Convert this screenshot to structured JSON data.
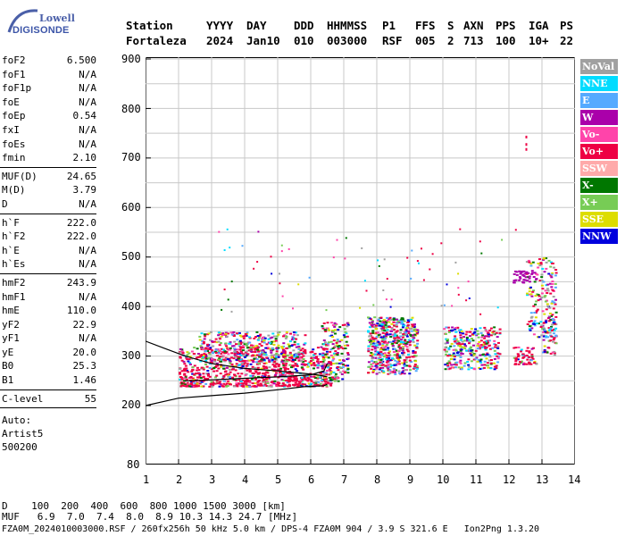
{
  "logo": {
    "line1": "Lowell",
    "line2": "DIGISONDE"
  },
  "header": {
    "row1": [
      "Station",
      "YYYY",
      "DAY",
      "DDD",
      "HHMMSS",
      "P1",
      "FFS",
      "S",
      "AXN",
      "PPS",
      "IGA",
      "PS"
    ],
    "row2": [
      "Fortaleza",
      "2024",
      "Jan10",
      "010",
      "003000",
      "RSF",
      "005",
      "2",
      "713",
      "100",
      "10+",
      "22"
    ]
  },
  "params": {
    "group1": [
      {
        "label": "foF2",
        "value": "6.500"
      },
      {
        "label": "foF1",
        "value": "N/A"
      },
      {
        "label": "foF1p",
        "value": "N/A"
      },
      {
        "label": "foE",
        "value": "N/A"
      },
      {
        "label": "foEp",
        "value": "0.54"
      },
      {
        "label": "fxI",
        "value": "N/A"
      },
      {
        "label": "foEs",
        "value": "N/A"
      },
      {
        "label": "fmin",
        "value": "2.10"
      }
    ],
    "group2": [
      {
        "label": "MUF(D)",
        "value": "24.65"
      },
      {
        "label": "M(D)",
        "value": "3.79"
      },
      {
        "label": "D",
        "value": "N/A"
      }
    ],
    "group3": [
      {
        "label": "h`F",
        "value": "222.0"
      },
      {
        "label": "h`F2",
        "value": "222.0"
      },
      {
        "label": "h`E",
        "value": "N/A"
      },
      {
        "label": "h`Es",
        "value": "N/A"
      }
    ],
    "group4": [
      {
        "label": "hmF2",
        "value": "243.9"
      },
      {
        "label": "hmF1",
        "value": "N/A"
      },
      {
        "label": "hmE",
        "value": "110.0"
      },
      {
        "label": "yF2",
        "value": "22.9"
      },
      {
        "label": "yF1",
        "value": "N/A"
      },
      {
        "label": "yE",
        "value": "20.0"
      },
      {
        "label": "B0",
        "value": "25.3"
      },
      {
        "label": "B1",
        "value": "1.46"
      }
    ],
    "group5": [
      {
        "label": "C-level",
        "value": "55"
      }
    ],
    "auto": [
      "Auto:",
      "Artist5",
      "500200"
    ]
  },
  "legend": [
    {
      "label": "NoVal",
      "color": "#a0a0a0"
    },
    {
      "label": "NNE",
      "color": "#00dcff"
    },
    {
      "label": "E",
      "color": "#55aaff"
    },
    {
      "label": "W",
      "color": "#aa00aa"
    },
    {
      "label": "Vo-",
      "color": "#ff44aa"
    },
    {
      "label": "Vo+",
      "color": "#ee0044"
    },
    {
      "label": "SSW",
      "color": "#ffaaaa"
    },
    {
      "label": "X-",
      "color": "#007700"
    },
    {
      "label": "X+",
      "color": "#77cc55"
    },
    {
      "label": "SSE",
      "color": "#dddd00"
    },
    {
      "label": "NNW",
      "color": "#0000dd"
    }
  ],
  "axes": {
    "y_ticks": [
      "900",
      "800",
      "700",
      "600",
      "500",
      "400",
      "300",
      "200",
      "80"
    ],
    "x_ticks": [
      "1",
      "2",
      "3",
      "4",
      "5",
      "6",
      "7",
      "8",
      "9",
      "10",
      "11",
      "12",
      "13",
      "14"
    ]
  },
  "footer": {
    "d_row": "D    100  200  400  600  800 1000 1500 3000 [km]",
    "muf_row": "MUF   6.9  7.0  7.4  8.0  8.9 10.3 14.3 24.7 [MHz]",
    "file_row": "FZA0M_2024010003000.RSF / 260fx256h 50 kHz 5.0 km / DPS-4 FZA0M 904 / 3.9 S 321.6 E   Ion2Png 1.3.20"
  }
}
